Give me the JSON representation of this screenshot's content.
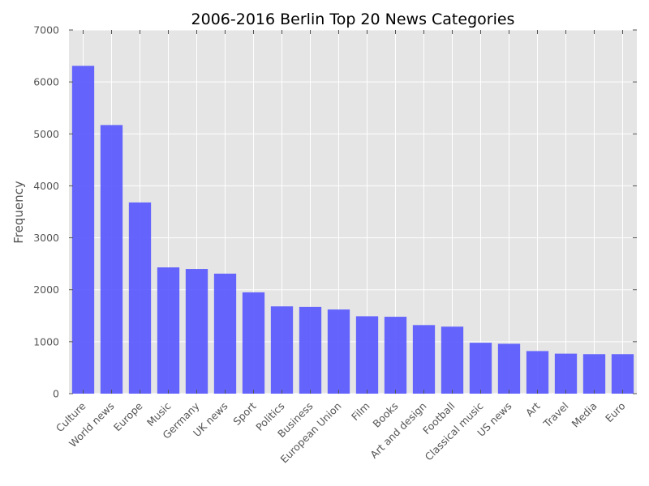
{
  "chart_data": {
    "type": "bar",
    "title": "2006-2016 Berlin Top 20 News Categories",
    "xlabel": "",
    "ylabel": "Frequency",
    "ylim": [
      0,
      7000
    ],
    "yticks": [
      0,
      1000,
      2000,
      3000,
      4000,
      5000,
      6000,
      7000
    ],
    "grid": true,
    "bar_color": "#5555ff",
    "plot_background": "#e5e5e5",
    "grid_color": "#ffffff",
    "categories": [
      "Culture",
      "World news",
      "Europe",
      "Music",
      "Germany",
      "UK news",
      "Sport",
      "Politics",
      "Business",
      "European Union",
      "Film",
      "Books",
      "Art and design",
      "Football",
      "Classical music",
      "US news",
      "Art",
      "Travel",
      "Media",
      "Euro"
    ],
    "values": [
      6310,
      5170,
      3680,
      2430,
      2400,
      2310,
      1950,
      1680,
      1670,
      1620,
      1490,
      1480,
      1320,
      1290,
      980,
      960,
      820,
      770,
      760,
      760
    ]
  }
}
